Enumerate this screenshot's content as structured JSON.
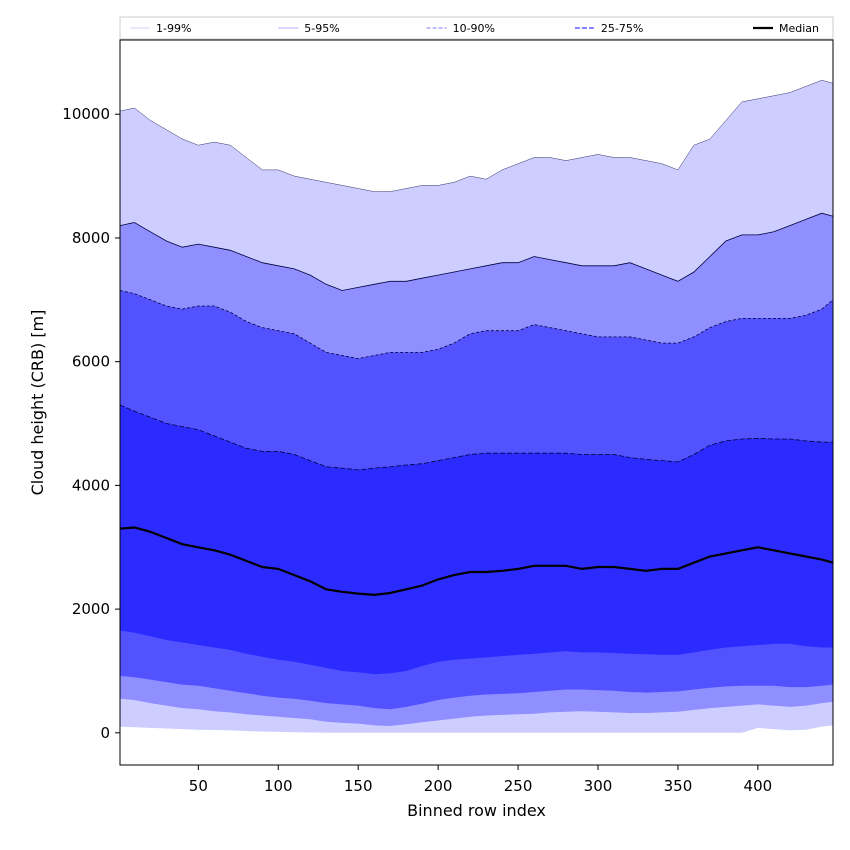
{
  "chart_data": {
    "type": "area",
    "xlabel": "Binned row index",
    "ylabel": "Cloud height (CRB) [m]",
    "xlim": [
      1,
      447
    ],
    "ylim": [
      -520,
      11200
    ],
    "xticks": [
      50,
      100,
      150,
      200,
      250,
      300,
      350,
      400
    ],
    "yticks": [
      0,
      2000,
      4000,
      6000,
      8000,
      10000
    ],
    "legend_position": "top, above plot, in one row",
    "grid": false,
    "x": [
      1,
      10,
      20,
      30,
      40,
      50,
      60,
      70,
      80,
      90,
      100,
      110,
      120,
      130,
      140,
      150,
      160,
      170,
      180,
      190,
      200,
      210,
      220,
      230,
      240,
      250,
      260,
      270,
      280,
      290,
      300,
      310,
      320,
      330,
      340,
      350,
      360,
      370,
      380,
      390,
      400,
      410,
      420,
      430,
      440,
      447
    ],
    "series": [
      {
        "name": "1-99%",
        "lower": [
          100,
          90,
          80,
          70,
          60,
          50,
          45,
          40,
          30,
          20,
          15,
          10,
          5,
          0,
          0,
          0,
          0,
          0,
          0,
          0,
          0,
          0,
          0,
          0,
          0,
          0,
          0,
          0,
          0,
          0,
          0,
          0,
          0,
          0,
          0,
          0,
          0,
          0,
          0,
          0,
          80,
          60,
          40,
          50,
          100,
          120
        ],
        "upper": [
          10050,
          10100,
          9900,
          9750,
          9600,
          9500,
          9550,
          9500,
          9300,
          9100,
          9100,
          9000,
          8950,
          8900,
          8850,
          8800,
          8750,
          8750,
          8800,
          8850,
          8850,
          8900,
          9000,
          8950,
          9100,
          9200,
          9300,
          9300,
          9250,
          9300,
          9350,
          9300,
          9300,
          9250,
          9200,
          9100,
          9500,
          9600,
          9900,
          10200,
          10250,
          10300,
          10350,
          10450,
          10550,
          10500
        ],
        "color": "#cdcdff"
      },
      {
        "name": "5-95%",
        "lower": [
          550,
          530,
          480,
          440,
          400,
          380,
          350,
          330,
          300,
          280,
          260,
          240,
          220,
          180,
          160,
          150,
          120,
          110,
          140,
          170,
          200,
          230,
          260,
          280,
          290,
          300,
          310,
          330,
          340,
          350,
          340,
          330,
          320,
          320,
          330,
          340,
          370,
          400,
          420,
          440,
          460,
          440,
          420,
          440,
          480,
          500
        ],
        "upper": [
          8200,
          8250,
          8100,
          7950,
          7850,
          7900,
          7850,
          7800,
          7700,
          7600,
          7550,
          7500,
          7400,
          7250,
          7150,
          7200,
          7250,
          7300,
          7300,
          7350,
          7400,
          7450,
          7500,
          7550,
          7600,
          7600,
          7700,
          7650,
          7600,
          7550,
          7550,
          7550,
          7600,
          7500,
          7400,
          7300,
          7450,
          7700,
          7950,
          8050,
          8050,
          8100,
          8200,
          8300,
          8400,
          8350
        ],
        "color": "#8f8fff"
      },
      {
        "name": "10-90%",
        "lower": [
          920,
          900,
          860,
          820,
          780,
          760,
          720,
          680,
          640,
          600,
          570,
          550,
          520,
          480,
          460,
          440,
          400,
          380,
          420,
          470,
          530,
          570,
          600,
          620,
          630,
          640,
          660,
          680,
          700,
          700,
          690,
          680,
          660,
          650,
          660,
          670,
          700,
          730,
          750,
          760,
          760,
          760,
          740,
          740,
          760,
          780
        ],
        "upper": [
          7150,
          7100,
          7000,
          6900,
          6850,
          6900,
          6900,
          6800,
          6650,
          6550,
          6500,
          6450,
          6300,
          6150,
          6100,
          6050,
          6100,
          6150,
          6150,
          6150,
          6200,
          6300,
          6450,
          6500,
          6500,
          6500,
          6600,
          6550,
          6500,
          6450,
          6400,
          6400,
          6400,
          6350,
          6300,
          6300,
          6400,
          6550,
          6650,
          6700,
          6700,
          6700,
          6700,
          6750,
          6850,
          7000
        ],
        "color": "#5252ff"
      },
      {
        "name": "25-75%",
        "lower": [
          1650,
          1620,
          1560,
          1500,
          1460,
          1420,
          1380,
          1340,
          1280,
          1230,
          1180,
          1150,
          1100,
          1050,
          1000,
          980,
          950,
          960,
          1000,
          1080,
          1150,
          1180,
          1200,
          1220,
          1240,
          1260,
          1280,
          1300,
          1320,
          1300,
          1300,
          1290,
          1280,
          1270,
          1260,
          1260,
          1300,
          1340,
          1380,
          1400,
          1420,
          1440,
          1440,
          1400,
          1380,
          1380
        ],
        "upper": [
          5300,
          5200,
          5100,
          5000,
          4950,
          4900,
          4800,
          4700,
          4600,
          4550,
          4550,
          4500,
          4400,
          4300,
          4280,
          4250,
          4280,
          4300,
          4330,
          4350,
          4400,
          4450,
          4500,
          4520,
          4520,
          4520,
          4520,
          4520,
          4520,
          4500,
          4500,
          4500,
          4450,
          4420,
          4400,
          4380,
          4500,
          4650,
          4720,
          4750,
          4760,
          4750,
          4750,
          4720,
          4700,
          4700
        ],
        "color": "#2b2bff"
      },
      {
        "name": "Median",
        "values": [
          3300,
          3320,
          3250,
          3150,
          3050,
          3000,
          2950,
          2880,
          2780,
          2680,
          2650,
          2550,
          2450,
          2320,
          2280,
          2250,
          2230,
          2260,
          2320,
          2380,
          2480,
          2550,
          2600,
          2600,
          2620,
          2650,
          2700,
          2700,
          2700,
          2650,
          2680,
          2680,
          2650,
          2620,
          2650,
          2650,
          2750,
          2850,
          2900,
          2950,
          3000,
          2950,
          2900,
          2850,
          2800,
          2750
        ],
        "color": "#000000"
      }
    ]
  }
}
